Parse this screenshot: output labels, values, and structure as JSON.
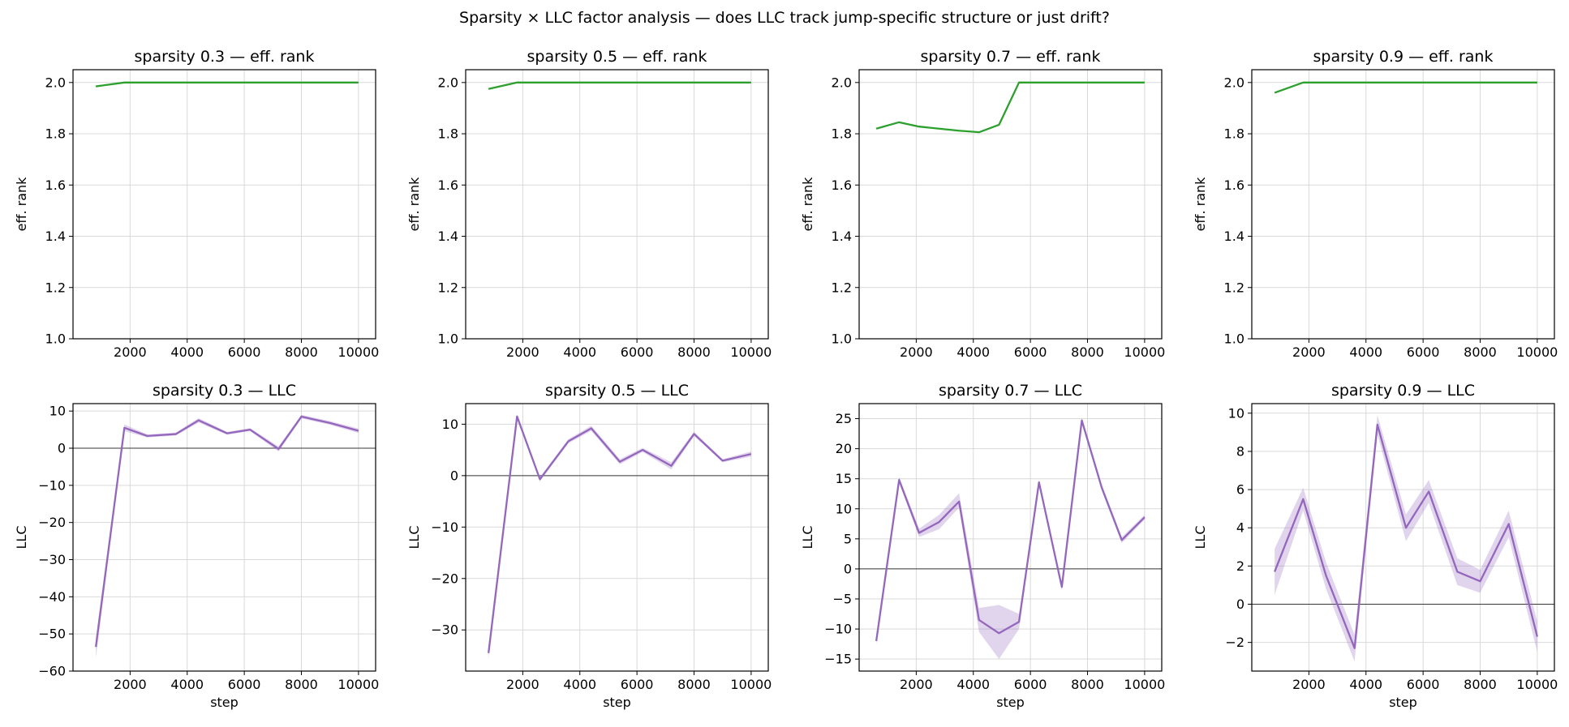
{
  "figure": {
    "title": "Sparsity × LLC factor analysis — does LLC track jump-specific structure or just drift?"
  },
  "colors": {
    "eff_rank_line": "#2ca02c",
    "llc_line": "#9467bd",
    "llc_band": "#9467bd",
    "zero_line": "#000000",
    "grid": "#d9d9d9"
  },
  "chart_data": [
    {
      "type": "line",
      "title": "sparsity 0.3 — eff. rank",
      "xlabel": "",
      "ylabel": "eff. rank",
      "xlim": [
        0,
        10600
      ],
      "ylim": [
        1.0,
        2.05
      ],
      "xticks": [
        2000,
        4000,
        6000,
        8000,
        10000
      ],
      "yticks": [
        1.0,
        1.2,
        1.4,
        1.6,
        1.8,
        2.0
      ],
      "ytick_labels": [
        "1.0",
        "1.2",
        "1.4",
        "1.6",
        "1.8",
        "2.0"
      ],
      "grid": true,
      "series": [
        {
          "x": [
            800,
            1800,
            2600,
            3600,
            4400,
            5400,
            6200,
            7200,
            8000,
            9000,
            10000
          ],
          "y": [
            1.985,
            2.0,
            2.0,
            2.0,
            2.0,
            2.0,
            2.0,
            2.0,
            2.0,
            2.0,
            2.0
          ]
        }
      ]
    },
    {
      "type": "line",
      "title": "sparsity 0.5 — eff. rank",
      "xlabel": "",
      "ylabel": "eff. rank",
      "xlim": [
        0,
        10600
      ],
      "ylim": [
        1.0,
        2.05
      ],
      "xticks": [
        2000,
        4000,
        6000,
        8000,
        10000
      ],
      "yticks": [
        1.0,
        1.2,
        1.4,
        1.6,
        1.8,
        2.0
      ],
      "ytick_labels": [
        "1.0",
        "1.2",
        "1.4",
        "1.6",
        "1.8",
        "2.0"
      ],
      "grid": true,
      "series": [
        {
          "x": [
            800,
            1800,
            2600,
            3600,
            4400,
            5400,
            6200,
            7200,
            8000,
            9000,
            10000
          ],
          "y": [
            1.975,
            2.0,
            2.0,
            2.0,
            2.0,
            2.0,
            2.0,
            2.0,
            2.0,
            2.0,
            2.0
          ]
        }
      ]
    },
    {
      "type": "line",
      "title": "sparsity 0.7 — eff. rank",
      "xlabel": "",
      "ylabel": "eff. rank",
      "xlim": [
        0,
        10600
      ],
      "ylim": [
        1.0,
        2.05
      ],
      "xticks": [
        2000,
        4000,
        6000,
        8000,
        10000
      ],
      "yticks": [
        1.0,
        1.2,
        1.4,
        1.6,
        1.8,
        2.0
      ],
      "ytick_labels": [
        "1.0",
        "1.2",
        "1.4",
        "1.6",
        "1.8",
        "2.0"
      ],
      "grid": true,
      "series": [
        {
          "x": [
            600,
            1400,
            2100,
            2800,
            3500,
            4200,
            4900,
            5600,
            6300,
            7100,
            7800,
            8500,
            9200,
            10000
          ],
          "y": [
            1.82,
            1.845,
            1.828,
            1.82,
            1.812,
            1.806,
            1.835,
            2.0,
            2.0,
            2.0,
            2.0,
            2.0,
            2.0,
            2.0
          ]
        }
      ]
    },
    {
      "type": "line",
      "title": "sparsity 0.9 — eff. rank",
      "xlabel": "",
      "ylabel": "eff. rank",
      "xlim": [
        0,
        10600
      ],
      "ylim": [
        1.0,
        2.05
      ],
      "xticks": [
        2000,
        4000,
        6000,
        8000,
        10000
      ],
      "yticks": [
        1.0,
        1.2,
        1.4,
        1.6,
        1.8,
        2.0
      ],
      "ytick_labels": [
        "1.0",
        "1.2",
        "1.4",
        "1.6",
        "1.8",
        "2.0"
      ],
      "grid": true,
      "series": [
        {
          "x": [
            800,
            1800,
            2600,
            3600,
            4400,
            5400,
            6200,
            7200,
            8000,
            9000,
            10000
          ],
          "y": [
            1.96,
            2.0,
            2.0,
            2.0,
            2.0,
            2.0,
            2.0,
            2.0,
            2.0,
            2.0,
            2.0
          ]
        }
      ]
    },
    {
      "type": "line",
      "title": "sparsity 0.3 — LLC",
      "xlabel": "step",
      "ylabel": "LLC",
      "xlim": [
        0,
        10600
      ],
      "ylim": [
        -60,
        12
      ],
      "xticks": [
        2000,
        4000,
        6000,
        8000,
        10000
      ],
      "yticks": [
        -60,
        -50,
        -40,
        -30,
        -20,
        -10,
        0,
        10
      ],
      "ytick_labels": [
        "−60",
        "−50",
        "−40",
        "−30",
        "−20",
        "−10",
        "0",
        "10"
      ],
      "grid": true,
      "zero_line": true,
      "series": [
        {
          "x": [
            800,
            1800,
            2600,
            3600,
            4400,
            5400,
            6200,
            7200,
            8000,
            9000,
            10000
          ],
          "y": [
            -53.5,
            5.5,
            3.3,
            3.8,
            7.5,
            4.0,
            5.0,
            -0.2,
            8.5,
            6.8,
            4.7
          ],
          "y_lower": [
            -56.5,
            4.6,
            2.9,
            3.4,
            6.9,
            3.6,
            4.6,
            -0.9,
            8.0,
            6.3,
            4.1
          ],
          "y_upper": [
            -51.0,
            6.4,
            3.7,
            4.2,
            8.1,
            4.4,
            5.4,
            0.5,
            9.0,
            7.3,
            5.3
          ]
        }
      ]
    },
    {
      "type": "line",
      "title": "sparsity 0.5 — LLC",
      "xlabel": "step",
      "ylabel": "LLC",
      "xlim": [
        0,
        10600
      ],
      "ylim": [
        -38,
        14
      ],
      "xticks": [
        2000,
        4000,
        6000,
        8000,
        10000
      ],
      "yticks": [
        -30,
        -20,
        -10,
        0,
        10
      ],
      "ytick_labels": [
        "−30",
        "−20",
        "−10",
        "0",
        "10"
      ],
      "grid": true,
      "zero_line": true,
      "series": [
        {
          "x": [
            800,
            1800,
            2600,
            3600,
            4400,
            5400,
            6200,
            7200,
            8000,
            9000,
            10000
          ],
          "y": [
            -34.5,
            11.5,
            -0.7,
            6.7,
            9.2,
            2.7,
            5.0,
            1.9,
            8.1,
            2.9,
            4.2
          ],
          "y_lower": [
            -35.5,
            11.0,
            -1.1,
            6.3,
            8.7,
            2.2,
            4.6,
            1.2,
            7.7,
            2.6,
            3.7
          ],
          "y_upper": [
            -33.5,
            12.0,
            -0.3,
            7.1,
            9.7,
            3.2,
            5.4,
            2.6,
            8.5,
            3.2,
            4.7
          ]
        }
      ]
    },
    {
      "type": "line",
      "title": "sparsity 0.7 — LLC",
      "xlabel": "step",
      "ylabel": "LLC",
      "xlim": [
        0,
        10600
      ],
      "ylim": [
        -17,
        27.5
      ],
      "xticks": [
        2000,
        4000,
        6000,
        8000,
        10000
      ],
      "yticks": [
        -15,
        -10,
        -5,
        0,
        5,
        10,
        15,
        20,
        25
      ],
      "ytick_labels": [
        "−15",
        "−10",
        "−5",
        "0",
        "5",
        "10",
        "15",
        "20",
        "25"
      ],
      "grid": true,
      "zero_line": true,
      "series": [
        {
          "x": [
            600,
            1400,
            2100,
            2800,
            3500,
            4200,
            4900,
            5600,
            6300,
            7100,
            7800,
            8500,
            9200,
            10000
          ],
          "y": [
            -12,
            14.8,
            6.0,
            7.8,
            11.2,
            -8.5,
            -10.7,
            -8.8,
            14.4,
            -3.0,
            24.7,
            13.5,
            4.8,
            8.6
          ],
          "y_lower": [
            -12.5,
            14.3,
            5.3,
            6.6,
            10.2,
            -10.5,
            -15.0,
            -10.0,
            14.0,
            -3.5,
            24.2,
            13.0,
            4.3,
            8.2
          ],
          "y_upper": [
            -11.5,
            15.3,
            6.7,
            9.0,
            12.6,
            -6.5,
            -6.0,
            -7.5,
            14.8,
            -2.5,
            25.2,
            14.0,
            5.3,
            9.0
          ]
        }
      ]
    },
    {
      "type": "line",
      "title": "sparsity 0.9 — LLC",
      "xlabel": "step",
      "ylabel": "LLC",
      "xlim": [
        0,
        10600
      ],
      "ylim": [
        -3.5,
        10.5
      ],
      "xticks": [
        2000,
        4000,
        6000,
        8000,
        10000
      ],
      "yticks": [
        -2,
        0,
        2,
        4,
        6,
        8,
        10
      ],
      "ytick_labels": [
        "−2",
        "0",
        "2",
        "4",
        "6",
        "8",
        "10"
      ],
      "grid": true,
      "zero_line": true,
      "series": [
        {
          "x": [
            800,
            1800,
            2600,
            3600,
            4400,
            5400,
            6200,
            7200,
            8000,
            9000,
            10000
          ],
          "y": [
            1.7,
            5.5,
            1.5,
            -2.3,
            9.4,
            4.0,
            5.9,
            1.7,
            1.2,
            4.2,
            -1.7
          ],
          "y_lower": [
            0.5,
            4.9,
            0.8,
            -3.0,
            8.9,
            3.3,
            5.3,
            1.0,
            0.6,
            3.5,
            -2.5
          ],
          "y_upper": [
            2.9,
            6.1,
            2.2,
            -1.6,
            9.9,
            4.7,
            6.5,
            2.4,
            1.8,
            4.9,
            -0.9
          ]
        }
      ]
    }
  ]
}
